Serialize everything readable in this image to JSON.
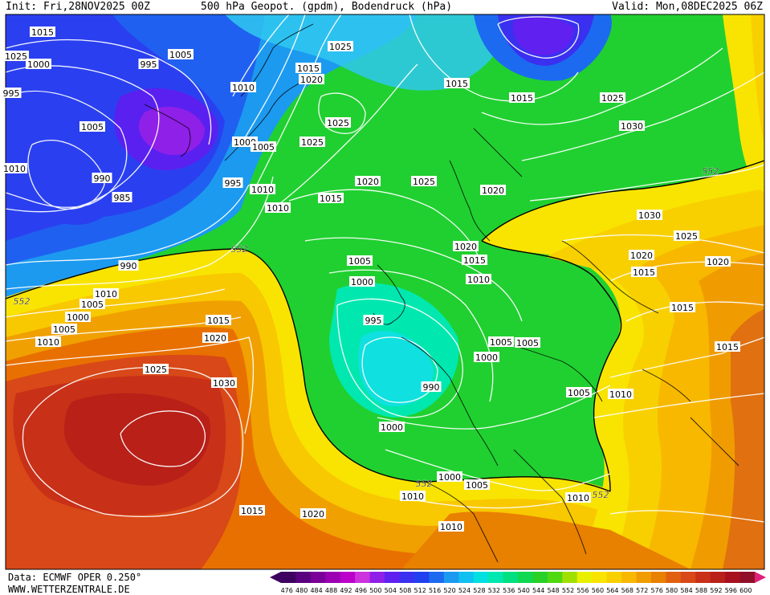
{
  "header": {
    "init": "Init: Fri,28NOV2025 00Z",
    "title": "500 hPa Geopot. (gpdm), Bodendruck (hPa)",
    "valid": "Valid: Mon,08DEC2025 06Z"
  },
  "footer": {
    "data_source": "Data: ECMWF OPER 0.250°",
    "website": "WWW.WETTERZENTRALE.DE"
  },
  "colorbar": {
    "ticks": [
      "476",
      "480",
      "484",
      "488",
      "492",
      "496",
      "500",
      "504",
      "508",
      "512",
      "516",
      "520",
      "524",
      "528",
      "532",
      "536",
      "540",
      "544",
      "548",
      "552",
      "556",
      "560",
      "564",
      "568",
      "572",
      "576",
      "580",
      "584",
      "588",
      "592",
      "596",
      "600"
    ],
    "colors": [
      "#3d0060",
      "#5a007f",
      "#7a0099",
      "#9b00b3",
      "#bb00cc",
      "#cc33dd",
      "#8f20e8",
      "#6020f0",
      "#3a30f0",
      "#2040f0",
      "#1c6af0",
      "#1c9af0",
      "#10c0f0",
      "#00e0e0",
      "#00e8b0",
      "#00e080",
      "#10d850",
      "#28d028",
      "#50d810",
      "#a0e000",
      "#e8f000",
      "#f8e400",
      "#f8d000",
      "#f8b800",
      "#f09c00",
      "#e88000",
      "#e06010",
      "#d84818",
      "#c83018",
      "#b82018",
      "#a81020",
      "#90102a"
    ]
  },
  "map": {
    "contour_552": "552",
    "isobars": [
      "1015",
      "1025",
      "1005",
      "1000",
      "995",
      "1015",
      "1020",
      "1010",
      "1015",
      "1015",
      "1025",
      "1005",
      "1025",
      "1025",
      "1030",
      "1010",
      "1000",
      "1005",
      "990",
      "985",
      "995",
      "1010",
      "1010",
      "1015",
      "1020",
      "1025",
      "1020",
      "1020",
      "1030",
      "1025",
      "1015",
      "1000",
      "1005",
      "1020",
      "1015",
      "1020",
      "1010",
      "1015",
      "1015",
      "990",
      "995",
      "1000",
      "1005",
      "1010",
      "1005",
      "1005",
      "1000",
      "995",
      "1015",
      "1020",
      "1025",
      "1030",
      "990",
      "1000",
      "1000",
      "1005",
      "1010",
      "1010",
      "1025",
      "1020",
      "1010",
      "1015",
      "1005",
      "1010",
      "1005",
      "1010"
    ]
  }
}
